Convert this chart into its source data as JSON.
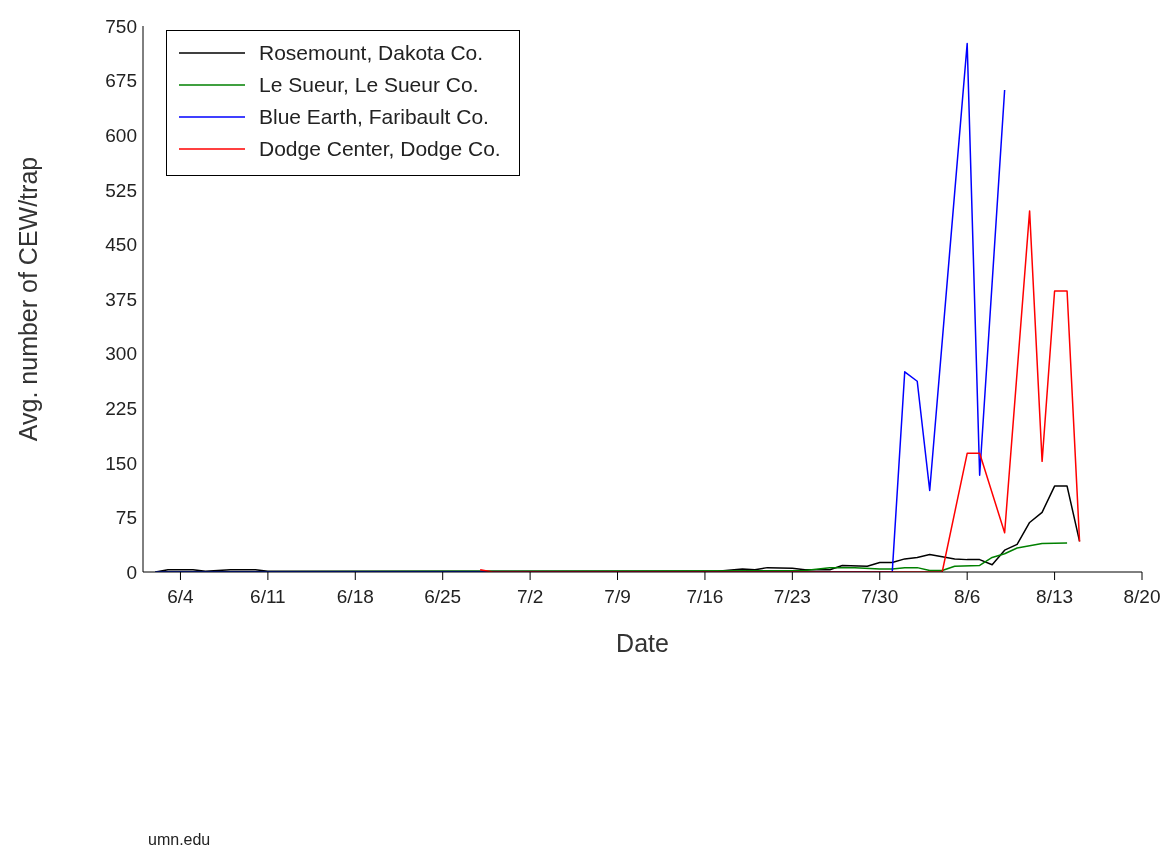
{
  "chart_data": {
    "type": "line",
    "xlabel": "Date",
    "ylabel": "Avg. number of CEW/trap",
    "annotations": [
      "umn.edu"
    ],
    "xlim": [
      "--06-01",
      "--08-20"
    ],
    "xticks": [
      {
        "value": "--06-04",
        "label": "6/4"
      },
      {
        "value": "--06-11",
        "label": "6/11"
      },
      {
        "value": "--06-18",
        "label": "6/18"
      },
      {
        "value": "--06-25",
        "label": "6/25"
      },
      {
        "value": "--07-02",
        "label": "7/2"
      },
      {
        "value": "--07-09",
        "label": "7/9"
      },
      {
        "value": "--07-16",
        "label": "7/16"
      },
      {
        "value": "--07-23",
        "label": "7/23"
      },
      {
        "value": "--07-30",
        "label": "7/30"
      },
      {
        "value": "--08-06",
        "label": "8/6"
      },
      {
        "value": "--08-13",
        "label": "8/13"
      },
      {
        "value": "--08-20",
        "label": "8/20"
      }
    ],
    "ylim": [
      0,
      750
    ],
    "yticks": [
      0,
      75,
      150,
      225,
      300,
      375,
      450,
      525,
      600,
      675,
      750
    ],
    "legend": "top left",
    "marker": "none",
    "line_style": "solid",
    "series": [
      {
        "name": "Rosemount, Dakota Co.",
        "color": "#000000",
        "x": [
          "--06-02",
          "--06-03",
          "--06-05",
          "--06-06",
          "--06-08",
          "--06-10",
          "--06-11",
          "--06-25",
          "--06-28",
          "--07-17",
          "--07-19",
          "--07-20",
          "--07-21",
          "--07-23",
          "--07-24",
          "--07-26",
          "--07-27",
          "--07-29",
          "--07-30",
          "--07-31",
          "--08-01",
          "--08-02",
          "--08-03",
          "--08-04",
          "--08-05",
          "--08-06",
          "--08-07",
          "--08-08",
          "--08-09",
          "--08-10",
          "--08-11",
          "--08-12",
          "--08-13",
          "--08-14",
          "--08-15"
        ],
        "values": [
          0,
          3,
          3,
          1,
          3,
          3,
          1,
          1,
          1,
          1,
          4,
          3,
          6,
          5,
          3,
          3,
          9,
          8,
          13,
          13,
          18,
          20,
          24,
          21,
          18,
          17,
          17,
          10,
          30,
          38,
          68,
          82,
          118,
          118,
          42
        ]
      },
      {
        "name": "Le Sueur, Le Sueur Co.",
        "color": "#008000",
        "x": [
          "--06-02",
          "--06-25",
          "--07-24",
          "--07-26",
          "--07-28",
          "--07-30",
          "--07-31",
          "--08-01",
          "--08-02",
          "--08-03",
          "--08-04",
          "--08-05",
          "--08-07",
          "--08-08",
          "--08-09",
          "--08-10",
          "--08-11",
          "--08-12",
          "--08-14"
        ],
        "values": [
          0,
          1,
          2,
          6,
          6,
          4,
          4,
          6,
          6,
          2,
          2,
          8,
          9,
          20,
          25,
          33,
          36,
          39,
          40
        ]
      },
      {
        "name": "Blue Earth, Faribault Co.",
        "color": "#0000ff",
        "x": [
          "--06-02",
          "--07-31",
          "--08-01",
          "--08-02",
          "--08-03",
          "--08-06",
          "--08-07",
          "--08-09"
        ],
        "values": [
          0,
          0,
          275,
          262,
          112,
          726,
          133,
          662
        ]
      },
      {
        "name": "Dodge Center, Dodge Co.",
        "color": "#ff0000",
        "x": [
          "--06-28",
          "--06-29",
          "--08-04",
          "--08-06",
          "--08-07",
          "--08-09",
          "--08-11",
          "--08-12",
          "--08-13",
          "--08-14",
          "--08-15"
        ],
        "values": [
          3,
          0,
          0,
          163,
          163,
          54,
          496,
          152,
          386,
          386,
          42
        ]
      }
    ]
  }
}
